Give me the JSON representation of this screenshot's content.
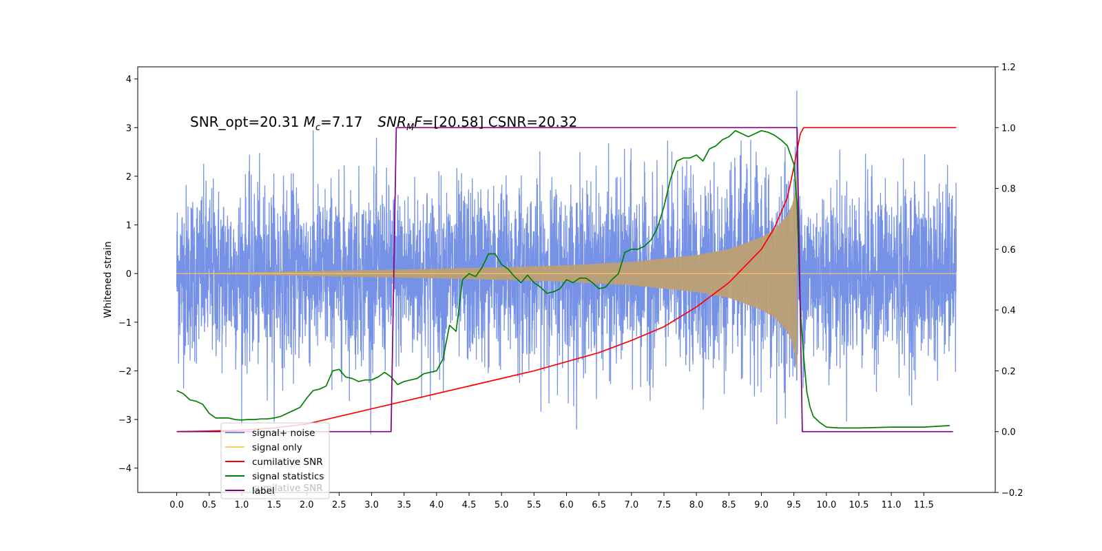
{
  "chart_data": {
    "type": "line",
    "xlim": [
      -0.6,
      12.6
    ],
    "ylim": [
      -4.5,
      4.25
    ],
    "ylim_right": [
      -0.2,
      1.2
    ],
    "x_ticks": [
      0.0,
      0.5,
      1.0,
      1.5,
      2.0,
      2.5,
      3.0,
      3.5,
      4.0,
      4.5,
      5.0,
      5.5,
      6.0,
      6.5,
      7.0,
      7.5,
      8.0,
      8.5,
      9.0,
      9.5,
      10.0,
      10.5,
      11.0,
      11.5
    ],
    "x_tick_labels": [
      "0.0",
      "0.5",
      "1.0",
      "1.5",
      "2.0",
      "2.5",
      "3.0",
      "3.5",
      "4.0",
      "4.5",
      "5.0",
      "5.5",
      "6.0",
      "6.5",
      "7.0",
      "7.5",
      "8.0",
      "8.5",
      "9.0",
      "9.5",
      "10.0",
      "10.5",
      "11.0",
      "11.5"
    ],
    "y_ticks": [
      -4,
      -3,
      -2,
      -1,
      0,
      1,
      2,
      3,
      4
    ],
    "y_tick_labels": [
      "−4",
      "−3",
      "−2",
      "−1",
      "0",
      "1",
      "2",
      "3",
      "4"
    ],
    "y_ticks_right": [
      -0.2,
      0.0,
      0.2,
      0.4,
      0.6,
      0.8,
      1.0,
      1.2
    ],
    "y_tick_labels_right": [
      "−0.2",
      "0.0",
      "0.2",
      "0.4",
      "0.6",
      "0.8",
      "1.0",
      "1.2"
    ],
    "ylabel": "Whitened strain",
    "annotation": {
      "part1": "SNR_opt=20.31 ",
      "mc_symbol": "M",
      "mc_sub": "c",
      "mc_value": "=7.17",
      "snr_symbol": "SNR",
      "snr_sub": "M",
      "snr_sub2": "F",
      "snr_value": "=[20.58] CSNR=20.32"
    },
    "legend": {
      "placement": "lower left",
      "entries": [
        {
          "label": "signal+ noise",
          "color": "#6f8ce6"
        },
        {
          "label": "signal only",
          "color": "#ffcc66"
        },
        {
          "label": "cumilative SNR",
          "color": "#ff0000"
        },
        {
          "label": "signal statistics",
          "color": "#008000"
        },
        {
          "label": "label",
          "color": "#800080"
        }
      ],
      "ghost_text": "cumilative SNR"
    },
    "series": [
      {
        "name": "signal+ noise",
        "axis": "left",
        "color": "#6f8ce6",
        "kind": "noise",
        "x_range": [
          0.0,
          12.0
        ],
        "amplitude_sigma": 1.0,
        "approx_max": 3.85,
        "approx_min": -3.3
      },
      {
        "name": "signal only",
        "axis": "left",
        "color": "#ffcc66",
        "kind": "chirp",
        "start": 0.0,
        "merger": 9.55,
        "end": 12.0,
        "envelope": {
          "x": [
            0.0,
            3.3,
            4.0,
            5.0,
            6.0,
            7.0,
            8.0,
            8.5,
            9.0,
            9.2,
            9.4,
            9.5,
            9.55
          ],
          "y": [
            0.0,
            0.08,
            0.1,
            0.13,
            0.17,
            0.24,
            0.38,
            0.5,
            0.75,
            0.9,
            1.2,
            1.5,
            2.1
          ]
        }
      },
      {
        "name": "cumilative SNR",
        "axis": "right",
        "color": "#ff0000",
        "x": [
          0.0,
          0.5,
          1.0,
          1.5,
          2.0,
          2.5,
          3.0,
          3.5,
          4.0,
          4.5,
          5.0,
          5.5,
          6.0,
          6.5,
          7.0,
          7.5,
          8.0,
          8.5,
          9.0,
          9.2,
          9.4,
          9.5,
          9.6,
          9.65,
          12.0
        ],
        "y": [
          0.0,
          0.002,
          0.005,
          0.012,
          0.025,
          0.05,
          0.075,
          0.1,
          0.125,
          0.15,
          0.175,
          0.2,
          0.23,
          0.26,
          0.3,
          0.345,
          0.41,
          0.49,
          0.6,
          0.67,
          0.77,
          0.87,
          0.98,
          1.0,
          1.0
        ]
      },
      {
        "name": "signal statistics",
        "axis": "right",
        "color": "#008000",
        "x": [
          0.0,
          0.1,
          0.2,
          0.3,
          0.4,
          0.5,
          0.6,
          0.7,
          0.8,
          0.9,
          1.0,
          1.1,
          1.2,
          1.3,
          1.4,
          1.5,
          1.6,
          1.7,
          1.8,
          1.9,
          2.0,
          2.1,
          2.2,
          2.3,
          2.4,
          2.5,
          2.6,
          2.7,
          2.8,
          2.9,
          3.0,
          3.1,
          3.2,
          3.3,
          3.4,
          3.5,
          3.6,
          3.7,
          3.8,
          3.9,
          4.0,
          4.1,
          4.2,
          4.3,
          4.4,
          4.5,
          4.6,
          4.7,
          4.8,
          4.9,
          5.0,
          5.1,
          5.2,
          5.3,
          5.4,
          5.5,
          5.6,
          5.7,
          5.8,
          5.9,
          6.0,
          6.1,
          6.2,
          6.3,
          6.4,
          6.5,
          6.6,
          6.7,
          6.8,
          6.9,
          7.0,
          7.1,
          7.2,
          7.3,
          7.4,
          7.5,
          7.6,
          7.7,
          7.8,
          7.9,
          8.0,
          8.1,
          8.2,
          8.3,
          8.4,
          8.5,
          8.6,
          8.7,
          8.8,
          8.9,
          9.0,
          9.1,
          9.2,
          9.3,
          9.4,
          9.5,
          9.55,
          9.6,
          9.65,
          9.7,
          9.75,
          9.8,
          9.9,
          10.0,
          10.2,
          10.5,
          11.0,
          11.5,
          11.9
        ],
        "y": [
          0.135,
          0.125,
          0.105,
          0.1,
          0.09,
          0.06,
          0.045,
          0.045,
          0.045,
          0.04,
          0.038,
          0.04,
          0.04,
          0.042,
          0.042,
          0.045,
          0.05,
          0.06,
          0.07,
          0.08,
          0.11,
          0.135,
          0.14,
          0.15,
          0.2,
          0.205,
          0.18,
          0.175,
          0.165,
          0.17,
          0.17,
          0.18,
          0.195,
          0.18,
          0.155,
          0.165,
          0.17,
          0.175,
          0.19,
          0.195,
          0.2,
          0.24,
          0.35,
          0.33,
          0.5,
          0.52,
          0.51,
          0.54,
          0.585,
          0.585,
          0.55,
          0.535,
          0.51,
          0.49,
          0.515,
          0.49,
          0.475,
          0.455,
          0.46,
          0.47,
          0.5,
          0.49,
          0.505,
          0.505,
          0.49,
          0.47,
          0.475,
          0.5,
          0.52,
          0.59,
          0.6,
          0.6,
          0.61,
          0.63,
          0.67,
          0.74,
          0.83,
          0.89,
          0.9,
          0.9,
          0.91,
          0.89,
          0.93,
          0.94,
          0.96,
          0.97,
          0.99,
          0.98,
          0.97,
          0.98,
          0.99,
          0.985,
          0.975,
          0.96,
          0.94,
          0.88,
          0.75,
          0.4,
          0.25,
          0.13,
          0.08,
          0.05,
          0.03,
          0.015,
          0.012,
          0.012,
          0.015,
          0.015,
          0.02
        ]
      },
      {
        "name": "label",
        "axis": "right",
        "color": "#800080",
        "x": [
          0.0,
          3.3,
          3.38,
          9.55,
          9.63,
          11.95
        ],
        "y": [
          0.0,
          0.0,
          1.0,
          1.0,
          0.0,
          0.0
        ]
      }
    ]
  }
}
